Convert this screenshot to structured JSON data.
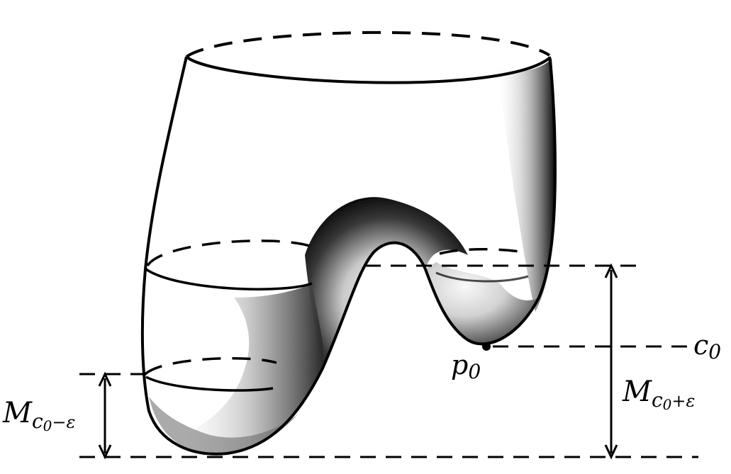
{
  "figure": {
    "labels": {
      "c0": {
        "main": "c",
        "sub": "0"
      },
      "p0": {
        "main": "p",
        "sub": "0"
      },
      "m_minus": {
        "main": "M",
        "sub": "c",
        "subsub": "0",
        "tail": "−ε"
      },
      "m_plus": {
        "main": "M",
        "sub": "c",
        "subsub": "0",
        "tail": "+ε"
      }
    },
    "colors": {
      "ink": "#000000",
      "paper": "#ffffff",
      "shade": "#7a7a7a"
    }
  }
}
